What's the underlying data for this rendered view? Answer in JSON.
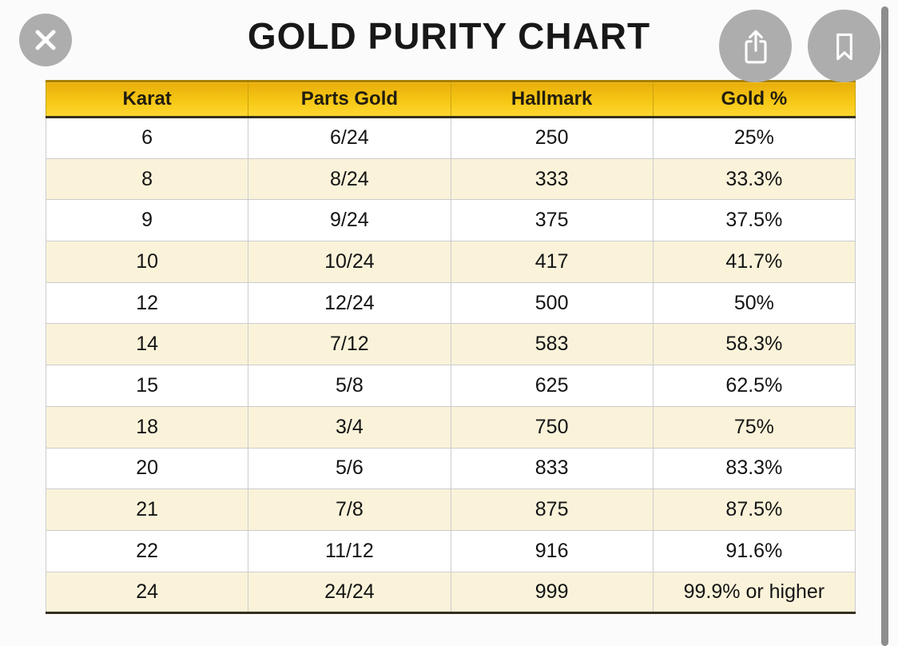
{
  "page": {
    "title": "GOLD PURITY CHART"
  },
  "toolbar": {
    "buttons": [
      {
        "name": "close",
        "icon": "close-icon"
      },
      {
        "name": "share",
        "icon": "share-icon"
      },
      {
        "name": "bookmark",
        "icon": "bookmark-icon"
      }
    ]
  },
  "table": {
    "headers": [
      "Karat",
      "Parts Gold",
      "Hallmark",
      "Gold %"
    ],
    "rows": [
      [
        "6",
        "6/24",
        "250",
        "25%"
      ],
      [
        "8",
        "8/24",
        "333",
        "33.3%"
      ],
      [
        "9",
        "9/24",
        "375",
        "37.5%"
      ],
      [
        "10",
        "10/24",
        "417",
        "41.7%"
      ],
      [
        "12",
        "12/24",
        "500",
        "50%"
      ],
      [
        "14",
        "7/12",
        "583",
        "58.3%"
      ],
      [
        "15",
        "5/8",
        "625",
        "62.5%"
      ],
      [
        "18",
        "3/4",
        "750",
        "75%"
      ],
      [
        "20",
        "5/6",
        "833",
        "83.3%"
      ],
      [
        "21",
        "7/8",
        "875",
        "87.5%"
      ],
      [
        "22",
        "11/12",
        "916",
        "91.6%"
      ],
      [
        "24",
        "24/24",
        "999",
        "99.9% or higher"
      ]
    ]
  },
  "colors": {
    "header_yellow": "#f6c816",
    "header_yellow_dark": "#e9ae0b",
    "row_cream": "#faf3da",
    "row_white": "#ffffff",
    "dark_rule": "#35301d",
    "grid_line": "#cccccc",
    "circle_gray": "#adadad",
    "icon_white": "#ffffff",
    "title_text": "#181818",
    "scrollbar_gray": "#8d8d8d"
  }
}
